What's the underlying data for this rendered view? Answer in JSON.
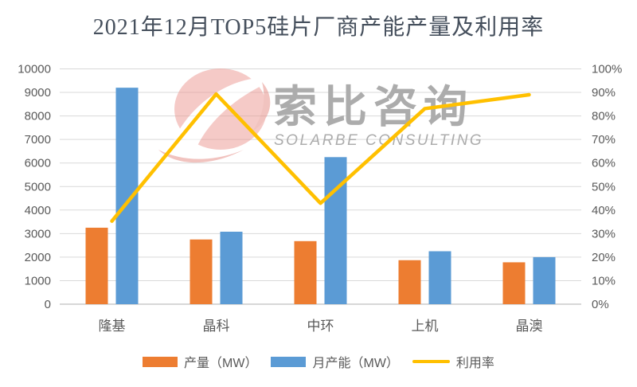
{
  "title": "2021年12月TOP5硅片厂商产能产量及利用率",
  "watermark": {
    "cn": "索比咨询",
    "en": "SOLARBE CONSULTING"
  },
  "chart_data": {
    "type": "bar+line combo",
    "title": "2021年12月TOP5硅片厂商产能产量及利用率",
    "categories": [
      "隆基",
      "晶科",
      "中环",
      "上机",
      "晶澳"
    ],
    "series": [
      {
        "name": "产量（MW）",
        "type": "bar",
        "axis": "left",
        "color": "#ED7D31",
        "values": [
          3250,
          2750,
          2680,
          1870,
          1780
        ]
      },
      {
        "name": "月产能（MW）",
        "type": "bar",
        "axis": "left",
        "color": "#5B9BD5",
        "values": [
          9200,
          3080,
          6250,
          2250,
          2000
        ]
      },
      {
        "name": "利用率",
        "type": "line",
        "axis": "right",
        "color": "#FFC000",
        "values_pct": [
          35.3,
          89.3,
          42.9,
          83.1,
          89.0
        ]
      }
    ],
    "left_axis": {
      "min": 0,
      "max": 10000,
      "step": 1000,
      "suffix": ""
    },
    "right_axis": {
      "min": 0,
      "max": 100,
      "step": 10,
      "suffix": "%"
    },
    "grid": true,
    "legend_position": "bottom"
  },
  "colors": {
    "production_bar": "#ED7D31",
    "capacity_bar": "#5B9BD5",
    "utilization_line": "#FFC000",
    "gridline": "#D9D9D9",
    "axis_line": "#BFBFBF",
    "axis_text": "#595959",
    "title_text": "#454F5C",
    "watermark_text": "#ACACAC",
    "watermark_logo": "#EC9790",
    "watermark_logo_deep": "#E58880",
    "background": "#FFFFFF"
  }
}
